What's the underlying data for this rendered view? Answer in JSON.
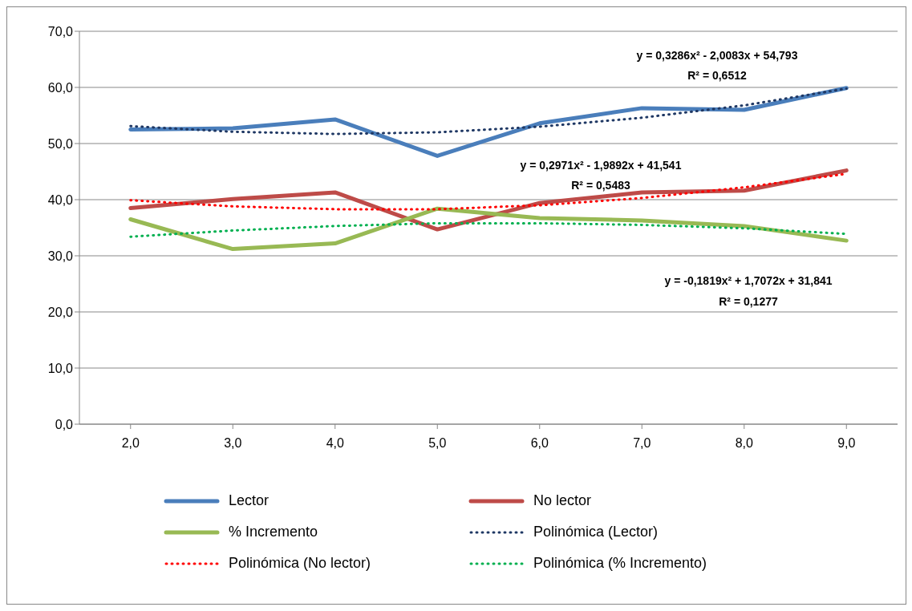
{
  "chart_data": {
    "type": "line",
    "categories": [
      "2,0",
      "3,0",
      "4,0",
      "5,0",
      "6,0",
      "7,0",
      "8,0",
      "9,0"
    ],
    "series": [
      {
        "name": "Lector",
        "color": "#4a7ebb",
        "values": [
          52.5,
          52.7,
          54.3,
          47.8,
          53.6,
          56.3,
          56.0,
          59.9
        ]
      },
      {
        "name": "No lector",
        "color": "#be4b48",
        "values": [
          38.5,
          40.1,
          41.3,
          34.7,
          39.4,
          41.3,
          41.6,
          45.2
        ]
      },
      {
        "name": "% Incremento",
        "color": "#98b954",
        "values": [
          36.5,
          31.2,
          32.2,
          38.4,
          36.7,
          36.3,
          35.3,
          32.7
        ]
      },
      {
        "name": "Polinómica (Lector)",
        "color": "#1f3864",
        "line_style": "dotted",
        "values": [
          53.1,
          52.1,
          51.7,
          52.0,
          53.0,
          54.6,
          56.8,
          59.8
        ]
      },
      {
        "name": "Polinómica (No lector)",
        "color": "#ff0000",
        "line_style": "dotted",
        "values": [
          39.9,
          38.8,
          38.3,
          38.3,
          39.0,
          40.3,
          42.2,
          44.6
        ]
      },
      {
        "name": "Polinómica (% Incremento)",
        "color": "#00b050",
        "line_style": "dotted",
        "values": [
          33.4,
          34.5,
          35.3,
          35.8,
          35.8,
          35.5,
          34.9,
          33.9
        ]
      }
    ],
    "ylim": [
      0,
      70
    ],
    "yticks": [
      {
        "value": 0,
        "label": "0,0"
      },
      {
        "value": 10,
        "label": "10,0"
      },
      {
        "value": 20,
        "label": "20,0"
      },
      {
        "value": 30,
        "label": "30,0"
      },
      {
        "value": 40,
        "label": "40,0"
      },
      {
        "value": 50,
        "label": "50,0"
      },
      {
        "value": 60,
        "label": "60,0"
      },
      {
        "value": 70,
        "label": "70,0"
      }
    ],
    "grid": "y",
    "legend": "bottom",
    "marker": "none",
    "line_style": "solid",
    "annotations": [
      "y = 0,3286x² - 2,0083x + 54,793",
      "R² = 0,6512",
      "y = 0,2971x² - 1,9892x + 41,541",
      "R² = 0,5483",
      "y = -0,1819x² + 1,7072x + 31,841",
      "R² = 0,1277"
    ]
  }
}
